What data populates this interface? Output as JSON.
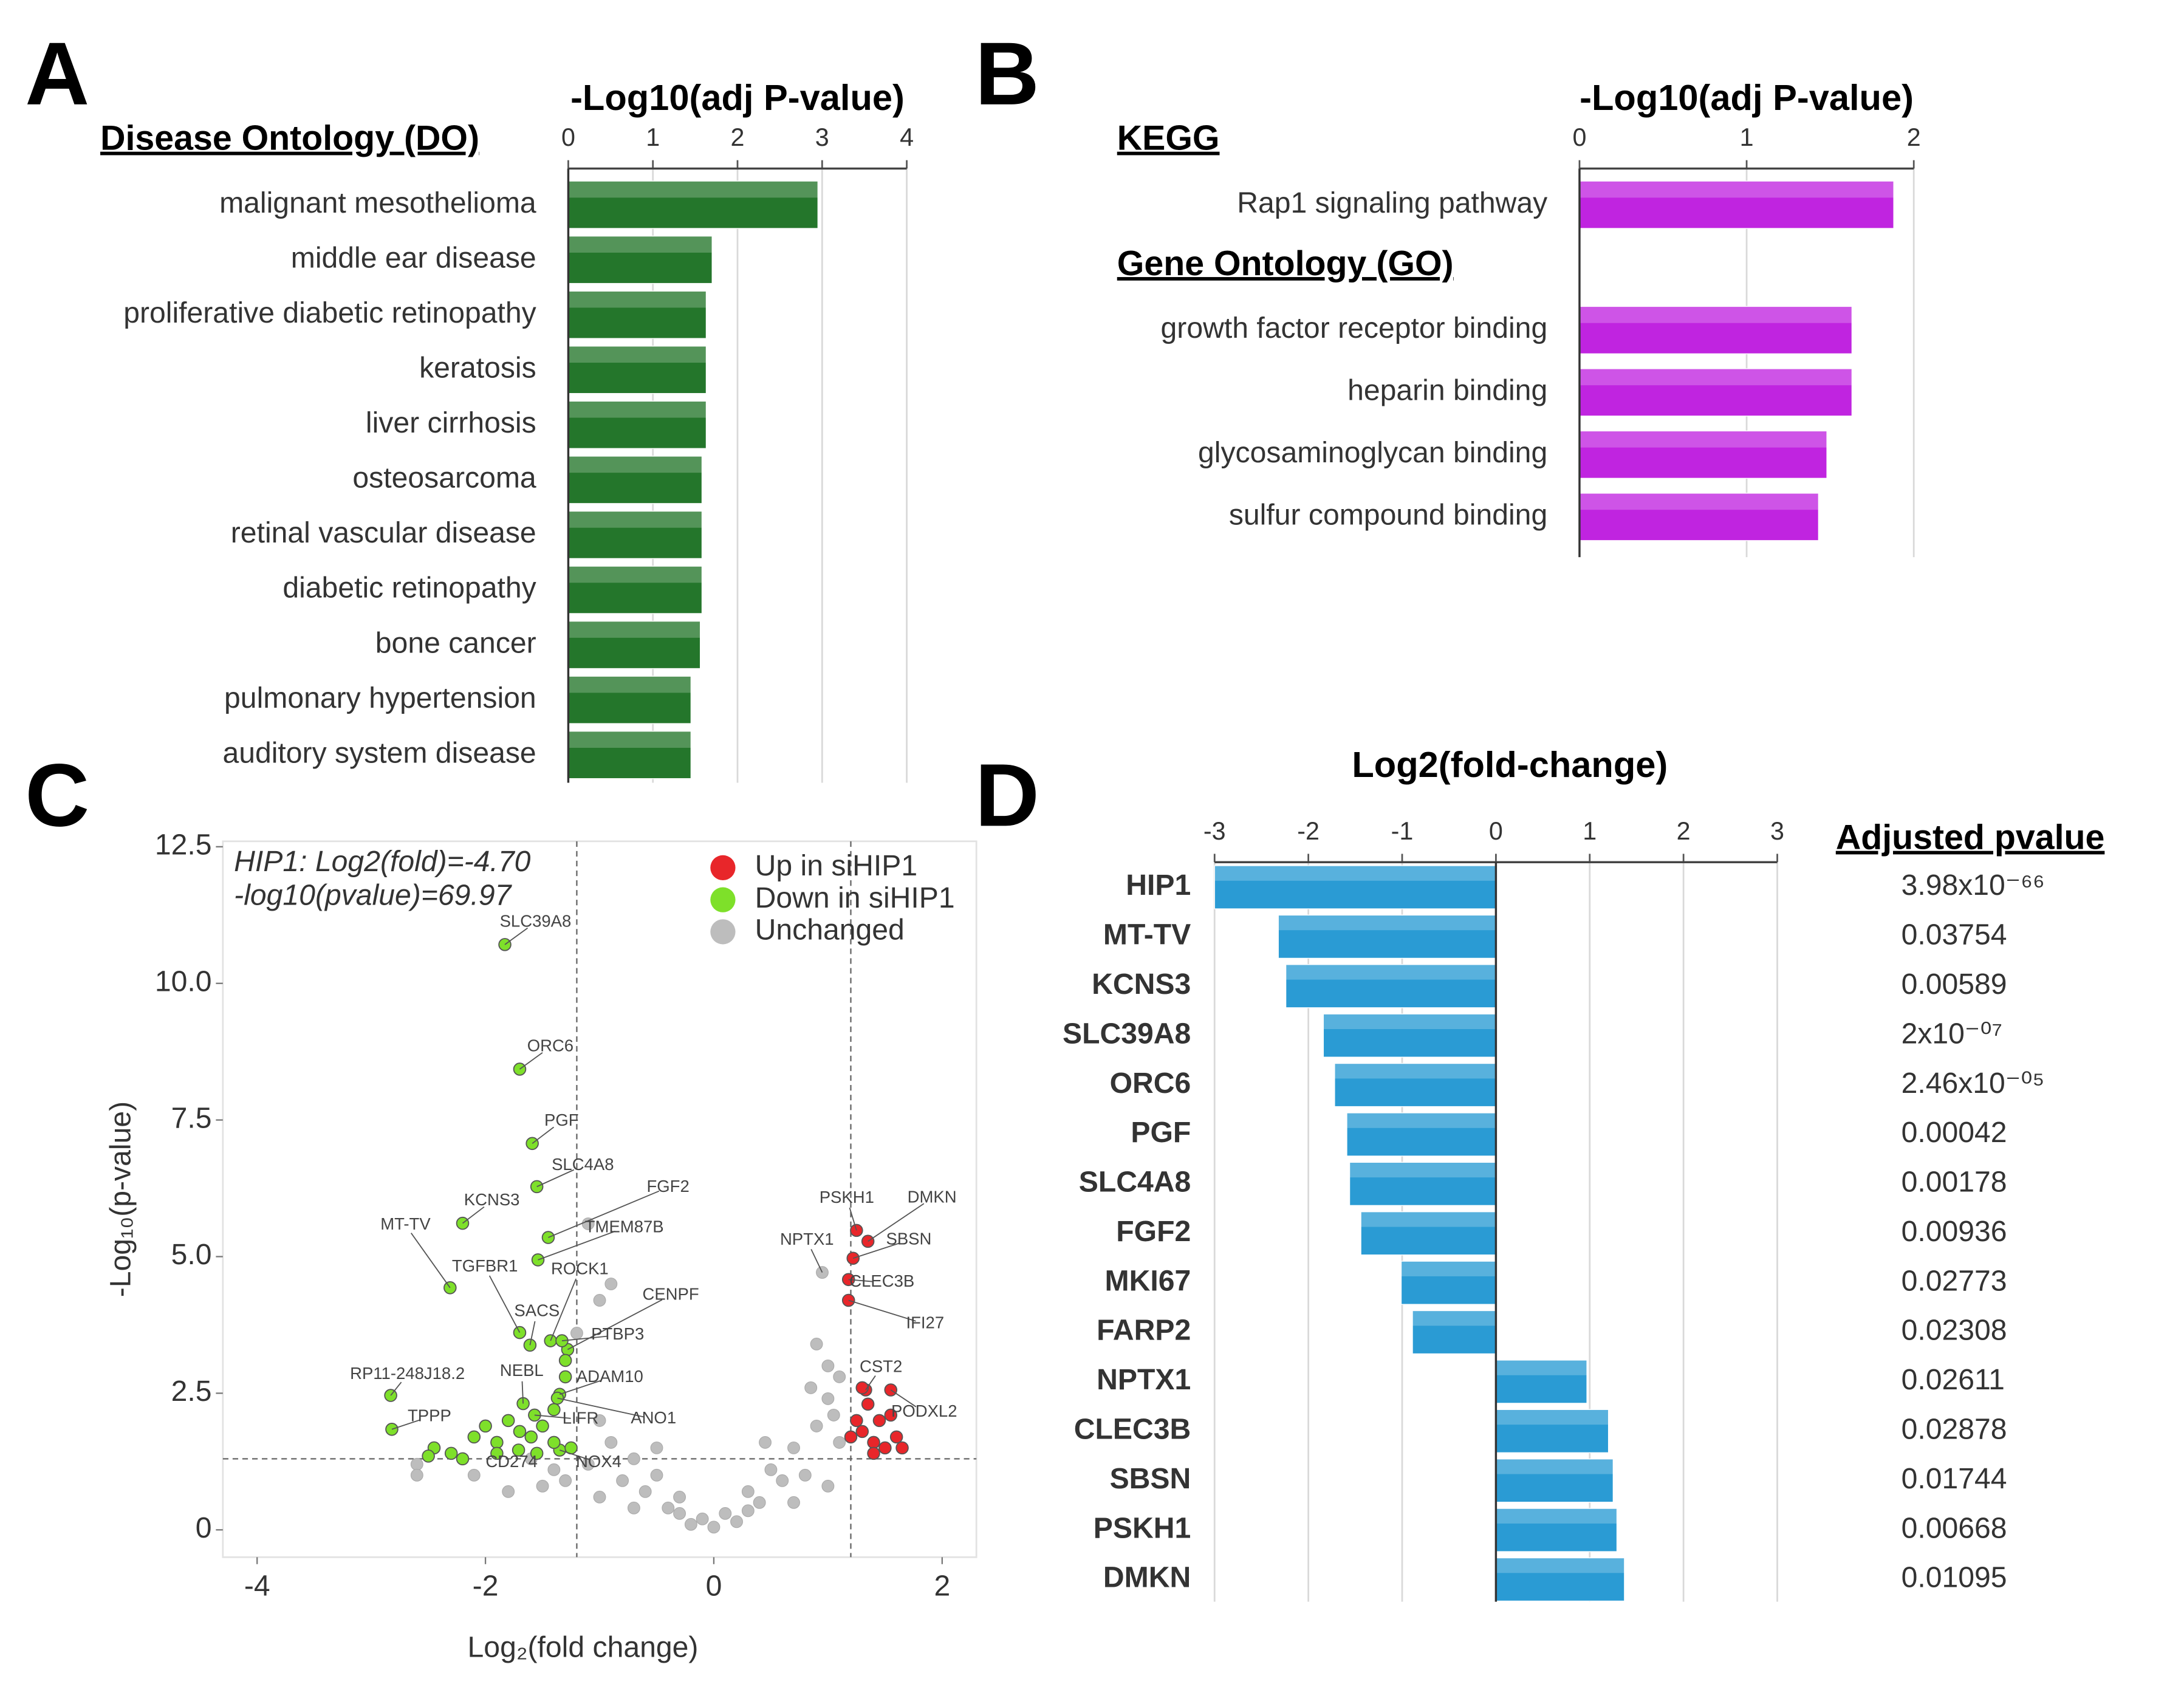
{
  "chart_data": [
    {
      "panel": "A",
      "type": "bar",
      "title": "Disease Ontology (DO)",
      "x_label": "-Log10(adj P-value)",
      "categories": [
        "malignant mesothelioma",
        "middle ear disease",
        "proliferative diabetic retinopathy",
        "keratosis",
        "liver cirrhosis",
        "osteosarcoma",
        "retinal vascular disease",
        "diabetic retinopathy",
        "bone cancer",
        "pulmonary hypertension",
        "auditory system disease"
      ],
      "values": [
        2.95,
        1.7,
        1.63,
        1.63,
        1.63,
        1.58,
        1.58,
        1.58,
        1.56,
        1.45,
        1.45
      ],
      "color": "#24762b",
      "xlim": [
        0,
        4
      ],
      "xticks": [
        0,
        1,
        2,
        3,
        4
      ],
      "grid": true
    },
    {
      "panel": "B",
      "type": "grouped_bar",
      "x_label": "-Log10(adj P-value)",
      "groups": [
        {
          "name": "KEGG",
          "categories": [
            "Rap1 signaling pathway"
          ],
          "values": [
            1.88
          ]
        },
        {
          "name": "Gene Ontology (GO)",
          "categories": [
            "growth factor receptor binding",
            "heparin binding",
            "glycosaminoglycan binding",
            "sulfur compound binding"
          ],
          "values": [
            1.63,
            1.63,
            1.48,
            1.43
          ]
        }
      ],
      "color": "#c024e0",
      "xlim": [
        0,
        2
      ],
      "xticks": [
        0,
        1,
        2
      ],
      "grid": true
    },
    {
      "panel": "C",
      "type": "scatter",
      "annotations": [
        "HIP1: Log2(fold)=-4.70",
        "-log10(pvalue)=69.97"
      ],
      "x_label": "Log₂(fold change)",
      "y_label": "-Log₁₀(p-value)",
      "xlim": [
        -4.3,
        2.3
      ],
      "xticks": [
        -4,
        -2,
        0,
        2
      ],
      "ylim": [
        -0.5,
        12.6
      ],
      "yticks": [
        0,
        {
          "value": 2.5,
          "label": "2.5"
        },
        {
          "value": 5,
          "label": "5.0"
        },
        7.5,
        {
          "value": 10,
          "label": "10.0"
        },
        12.5
      ],
      "thresholds": {
        "x": [
          -1.2,
          1.2
        ],
        "y": 1.3
      },
      "legend": "upper right",
      "series": [
        {
          "name": "Up in siHIP1",
          "color": "#e8262a",
          "x": [
            1.25,
            1.35,
            1.22,
            1.18,
            1.18,
            1.33,
            1.55,
            1.25,
            1.3,
            1.4,
            1.5,
            1.35,
            1.45,
            1.6,
            1.65,
            1.2,
            1.4,
            1.55,
            1.3
          ],
          "values": [
            5.48,
            5.28,
            4.97,
            4.58,
            4.2,
            2.56,
            2.56,
            2.0,
            1.8,
            1.6,
            1.5,
            2.3,
            2.0,
            1.7,
            1.5,
            1.7,
            1.4,
            2.1,
            2.6
          ],
          "labels": [
            "PSKH1",
            "DMKN",
            "SBSN",
            "CLEC3B",
            "IFI27",
            "CST2",
            "PODXL2",
            null,
            null,
            null,
            null,
            null,
            null,
            null,
            null,
            null,
            null,
            null,
            null
          ]
        },
        {
          "name": "Down in siHIP1",
          "color": "#7ee02a",
          "x": [
            -1.83,
            -1.7,
            -1.59,
            -1.55,
            -2.2,
            -2.31,
            -1.7,
            -1.45,
            -1.54,
            -1.43,
            -1.61,
            -1.28,
            -1.33,
            -2.83,
            -2.82,
            -1.67,
            -1.35,
            -1.57,
            -1.37,
            -1.71,
            -1.35,
            -2.1,
            -2.0,
            -1.9,
            -2.3,
            -2.2,
            -1.8,
            -1.9,
            -1.6,
            -1.5,
            -1.4,
            -1.3,
            -1.3,
            -1.4,
            -1.25,
            -2.45,
            -2.5,
            -1.7,
            -1.55
          ],
          "values": [
            10.71,
            8.43,
            7.07,
            6.28,
            5.61,
            4.43,
            3.61,
            5.35,
            4.94,
            3.46,
            3.38,
            3.3,
            3.46,
            2.46,
            1.84,
            2.31,
            2.48,
            2.1,
            2.41,
            1.46,
            1.46,
            1.7,
            1.9,
            1.6,
            1.4,
            1.3,
            2.0,
            1.4,
            1.7,
            1.9,
            2.2,
            2.8,
            3.1,
            1.6,
            1.5,
            1.5,
            1.35,
            1.8,
            1.4
          ],
          "labels": [
            "SLC39A8",
            "ORC6",
            "PGF",
            "SLC4A8",
            "KCNS3",
            "MT-TV",
            "TGFBR1",
            "FGF2",
            "TMEM87B",
            "ROCK1",
            "SACS",
            "CENPF",
            "PTBP3",
            "RP11-248J18.2",
            "TPPP",
            "NEBL",
            "ADAM10",
            "LIFR",
            "ANO1",
            "CD274",
            "NOX4",
            null,
            null,
            null,
            null,
            null,
            null,
            null,
            null,
            null,
            null,
            null,
            null,
            null,
            null,
            null,
            null,
            null,
            null
          ]
        },
        {
          "name": "Unchanged",
          "color": "#bdbdbd",
          "x": [
            0.95,
            -0.1,
            0.1,
            -0.3,
            0.3,
            -0.5,
            0.5,
            -0.7,
            0.7,
            -0.9,
            0.9,
            -1.0,
            1.0,
            -0.6,
            0.6,
            -0.8,
            0.8,
            -1.1,
            1.1,
            -1.3,
            1.0,
            0.9,
            1.1,
            -0.4,
            0.4,
            -0.2,
            0.2,
            -1.5,
            -1.8,
            -2.1,
            -2.6,
            -0.9,
            -1.1,
            -1.0,
            -1.2,
            1.05,
            0.85,
            -0.7,
            0.7,
            -1.0,
            1.0,
            -1.4,
            -0.5,
            0.45,
            -0.3,
            0.3,
            0.0,
            -2.6,
            -1.6
          ],
          "values": [
            4.71,
            0.2,
            0.3,
            0.6,
            0.7,
            1.0,
            1.1,
            1.3,
            1.5,
            1.6,
            1.9,
            2.0,
            2.4,
            0.7,
            0.9,
            0.9,
            1.0,
            1.2,
            1.6,
            0.9,
            3.0,
            3.4,
            2.8,
            0.4,
            0.5,
            0.1,
            0.15,
            0.8,
            0.7,
            1.0,
            1.2,
            4.5,
            5.6,
            4.2,
            3.6,
            2.1,
            2.6,
            0.4,
            0.5,
            0.6,
            0.8,
            1.1,
            1.5,
            1.6,
            0.3,
            0.35,
            0.05,
            1.0,
            1.3
          ],
          "labels": [
            "NPTX1",
            null,
            null,
            null,
            null,
            null,
            null,
            null,
            null,
            null,
            null,
            null,
            null,
            null,
            null,
            null,
            null,
            null,
            null,
            null,
            null,
            null,
            null,
            null,
            null,
            null,
            null,
            null,
            null,
            null,
            null,
            null,
            null,
            null,
            null,
            null,
            null,
            null,
            null,
            null,
            null,
            null,
            null,
            null,
            null,
            null,
            null,
            null,
            null
          ]
        }
      ]
    },
    {
      "panel": "D",
      "type": "bar",
      "title": "Log2(fold-change)",
      "categories": [
        "HIP1",
        "MT-TV",
        "KCNS3",
        "SLC39A8",
        "ORC6",
        "PGF",
        "SLC4A8",
        "FGF2",
        "MKI67",
        "FARP2",
        "NPTX1",
        "CLEC3B",
        "SBSN",
        "PSKH1",
        "DMKN"
      ],
      "values": [
        -3.0,
        -2.32,
        -2.24,
        -1.84,
        -1.72,
        -1.59,
        -1.56,
        -1.44,
        -1.01,
        -0.89,
        0.97,
        1.2,
        1.25,
        1.29,
        1.37
      ],
      "color": "#2a9bd4",
      "xlim": [
        -3,
        3
      ],
      "xticks": [
        -3,
        -2,
        -1,
        0,
        1,
        2,
        3
      ],
      "grid": true,
      "table": {
        "header": "Adjusted pvalue",
        "values": [
          "3.98x10⁻⁶⁶",
          "0.03754",
          "0.00589",
          "2x10⁻⁰⁷",
          "2.46x10⁻⁰⁵",
          "0.00042",
          "0.00178",
          "0.00936",
          "0.02773",
          "0.02308",
          "0.02611",
          "0.02878",
          "0.01744",
          "0.00668",
          "0.01095"
        ]
      }
    }
  ]
}
